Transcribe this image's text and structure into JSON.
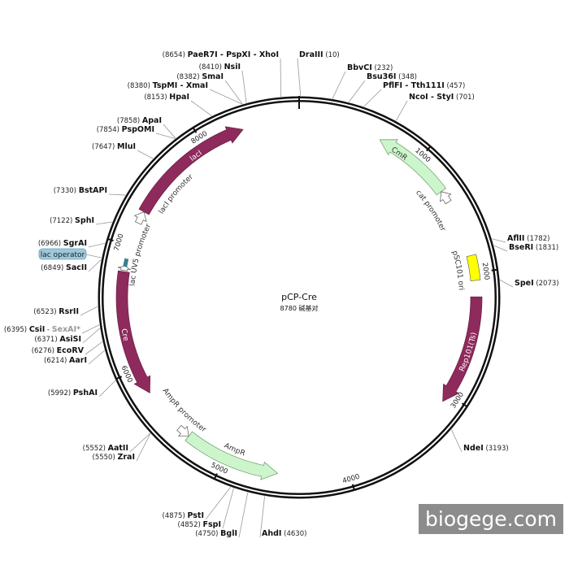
{
  "map": {
    "title": "pCP-Cre",
    "size_label": "8780 碱基对",
    "length_bp": 8780
  },
  "ticks": [
    "1000",
    "2000",
    "3000",
    "4000",
    "5000",
    "6000",
    "7000",
    "8000"
  ],
  "sites": [
    {
      "name": "DraIII",
      "pos": "(10)",
      "bp": 10
    },
    {
      "name": "BbvCI",
      "pos": "(232)",
      "bp": 232
    },
    {
      "name": "Bsu36I",
      "pos": "(348)",
      "bp": 348
    },
    {
      "name": "PflFI - Tth111I",
      "pos": "(457)",
      "bp": 457
    },
    {
      "name": "NcoI - StyI",
      "pos": "(701)",
      "bp": 701
    },
    {
      "name": "AflII",
      "pos": "(1782)",
      "bp": 1782
    },
    {
      "name": "BseRI",
      "pos": "(1831)",
      "bp": 1831
    },
    {
      "name": "SpeI",
      "pos": "(2073)",
      "bp": 2073
    },
    {
      "name": "NdeI",
      "pos": "(3193)",
      "bp": 3193
    },
    {
      "name": "AhdI",
      "pos": "(4630)",
      "bp": 4630
    },
    {
      "name": "BglI",
      "pos": "(4750)",
      "bp": 4750
    },
    {
      "name": "FspI",
      "pos": "(4852)",
      "bp": 4852
    },
    {
      "name": "PstI",
      "pos": "(4875)",
      "bp": 4875
    },
    {
      "name": "ZraI",
      "pos": "(5550)",
      "bp": 5550
    },
    {
      "name": "AatII",
      "pos": "(5552)",
      "bp": 5552
    },
    {
      "name": "PshAI",
      "pos": "(5992)",
      "bp": 5992
    },
    {
      "name": "AarI",
      "pos": "(6214)",
      "bp": 6214
    },
    {
      "name": "EcoRV",
      "pos": "(6276)",
      "bp": 6276
    },
    {
      "name": "AsiSI",
      "pos": "(6371)",
      "bp": 6371
    },
    {
      "name": "CsiI",
      "alt": "SexAI*",
      "pos": "(6395)",
      "bp": 6395
    },
    {
      "name": "RsrII",
      "pos": "(6523)",
      "bp": 6523
    },
    {
      "name": "SacII",
      "pos": "(6849)",
      "bp": 6849
    },
    {
      "name": "SgrAI",
      "pos": "(6966)",
      "bp": 6966
    },
    {
      "name": "SphI",
      "pos": "(7122)",
      "bp": 7122
    },
    {
      "name": "BstAPI",
      "pos": "(7330)",
      "bp": 7330
    },
    {
      "name": "MluI",
      "pos": "(7647)",
      "bp": 7647
    },
    {
      "name": "PspOMI",
      "pos": "(7854)",
      "bp": 7854
    },
    {
      "name": "ApaI",
      "pos": "(7858)",
      "bp": 7858
    },
    {
      "name": "HpaI",
      "pos": "(8153)",
      "bp": 8153
    },
    {
      "name": "TspMI - XmaI",
      "pos": "(8380)",
      "bp": 8380
    },
    {
      "name": "SmaI",
      "pos": "(8382)",
      "bp": 8382
    },
    {
      "name": "NsiI",
      "pos": "(8410)",
      "bp": 8410
    },
    {
      "name": "PaeR7I - PspXI - XhoI",
      "pos": "(8654)",
      "bp": 8654
    }
  ],
  "lac_operator": {
    "label": "lac operator",
    "bp": 6862,
    "color": "#9cc9d9"
  },
  "features": [
    {
      "name": "lacI",
      "start": 7290,
      "end": 8330,
      "dir": 1,
      "color": "#8e2a5c",
      "text": "#ffffff",
      "kind": "gene"
    },
    {
      "name": "lacI promoter",
      "start": 7190,
      "end": 7290,
      "dir": 1,
      "color": "#ffffff",
      "kind": "promoter"
    },
    {
      "name": "CmR",
      "start": 660,
      "end": 1300,
      "dir": -1,
      "color": "#ccf5cc",
      "text": "#333333",
      "kind": "gene"
    },
    {
      "name": "cat promoter",
      "start": 1300,
      "end": 1400,
      "dir": -1,
      "color": "#ffffff",
      "kind": "promoter"
    },
    {
      "name": "pSC101 ori",
      "start": 1860,
      "end": 2060,
      "dir": 0,
      "color": "#ffff00",
      "kind": "origin"
    },
    {
      "name": "Rep101(Ts)",
      "start": 2190,
      "end": 3070,
      "dir": 1,
      "color": "#8e2a5c",
      "text": "#ffffff",
      "kind": "gene"
    },
    {
      "name": "AmpR",
      "start": 4560,
      "end": 5330,
      "dir": -1,
      "color": "#ccf5cc",
      "text": "#333333",
      "kind": "gene"
    },
    {
      "name": "AmpR promoter",
      "start": 5330,
      "end": 5430,
      "dir": -1,
      "color": "#ffffff",
      "kind": "promoter"
    },
    {
      "name": "Cre",
      "start": 5790,
      "end": 6790,
      "dir": -1,
      "color": "#8e2a5c",
      "text": "#ffffff",
      "kind": "gene"
    },
    {
      "name": "lac UV5 promoter",
      "start": 6800,
      "end": 6835,
      "dir": 1,
      "color": "#ffffff",
      "kind": "promoter"
    }
  ],
  "watermark": "biogege.com"
}
